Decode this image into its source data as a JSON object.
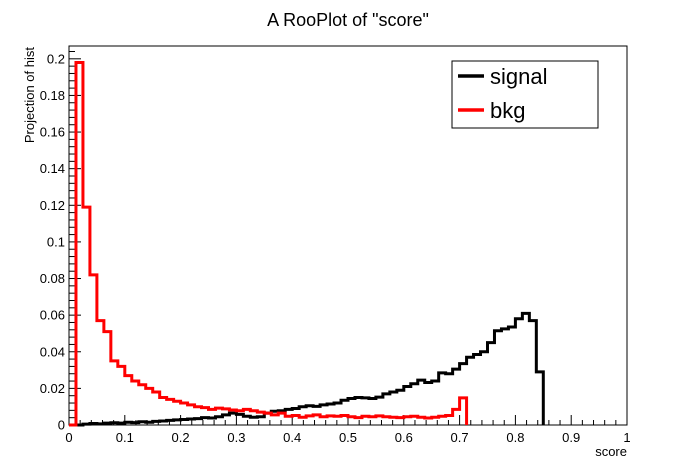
{
  "chart_data": {
    "type": "line",
    "title": "A RooPlot of \"score\"",
    "xlabel": "score",
    "ylabel": "Projection of hist",
    "xlim": [
      0,
      1
    ],
    "ylim": [
      0,
      0.207
    ],
    "xticks": [
      0,
      0.1,
      0.2,
      0.3,
      0.4,
      0.5,
      0.6,
      0.7,
      0.8,
      0.9,
      1
    ],
    "xtick_labels": [
      "0",
      "0.1",
      "0.2",
      "0.3",
      "0.4",
      "0.5",
      "0.6",
      "0.7",
      "0.8",
      "0.9",
      "1"
    ],
    "yticks": [
      0,
      0.02,
      0.04,
      0.06,
      0.08,
      0.1,
      0.12,
      0.14,
      0.16,
      0.18,
      0.2
    ],
    "ytick_labels": [
      "0",
      "0.02",
      "0.04",
      "0.06",
      "0.08",
      "0.1",
      "0.12",
      "0.14",
      "0.16",
      "0.18",
      "0.2"
    ],
    "grid": false,
    "legend": "top-right",
    "bin_width": 0.0125,
    "series": [
      {
        "name": "signal",
        "color": "#000000",
        "values": [
          0,
          0,
          0.0005,
          0.0008,
          0.0006,
          0.001,
          0.0012,
          0.001,
          0.0015,
          0.0013,
          0.0018,
          0.0015,
          0.002,
          0.0022,
          0.0025,
          0.0028,
          0.003,
          0.0033,
          0.0035,
          0.004,
          0.0038,
          0.0045,
          0.0055,
          0.0065,
          0.0058,
          0.0048,
          0.0042,
          0.0045,
          0.0065,
          0.0075,
          0.0078,
          0.0085,
          0.009,
          0.01,
          0.0105,
          0.0102,
          0.011,
          0.0115,
          0.012,
          0.0135,
          0.0145,
          0.015,
          0.0148,
          0.0145,
          0.0152,
          0.017,
          0.018,
          0.019,
          0.021,
          0.0225,
          0.0245,
          0.0232,
          0.024,
          0.0285,
          0.028,
          0.0305,
          0.0335,
          0.037,
          0.0385,
          0.04,
          0.045,
          0.0515,
          0.0525,
          0.0535,
          0.058,
          0.061,
          0.057,
          0.029
        ]
      },
      {
        "name": "bkg",
        "color": "#ff0000",
        "values": [
          0,
          0.198,
          0.119,
          0.082,
          0.057,
          0.051,
          0.035,
          0.032,
          0.027,
          0.024,
          0.022,
          0.02,
          0.018,
          0.015,
          0.014,
          0.013,
          0.012,
          0.011,
          0.01,
          0.0095,
          0.0085,
          0.0092,
          0.0088,
          0.0082,
          0.0078,
          0.0085,
          0.0078,
          0.007,
          0.0065,
          0.0055,
          0.0065,
          0.0048,
          0.0052,
          0.0042,
          0.005,
          0.0055,
          0.0045,
          0.005,
          0.0048,
          0.0052,
          0.0045,
          0.004,
          0.0048,
          0.0045,
          0.005,
          0.0045,
          0.0042,
          0.004,
          0.0045,
          0.0048,
          0.0042,
          0.0038,
          0.0042,
          0.0048,
          0.0052,
          0.0085,
          0.0148
        ]
      }
    ]
  }
}
